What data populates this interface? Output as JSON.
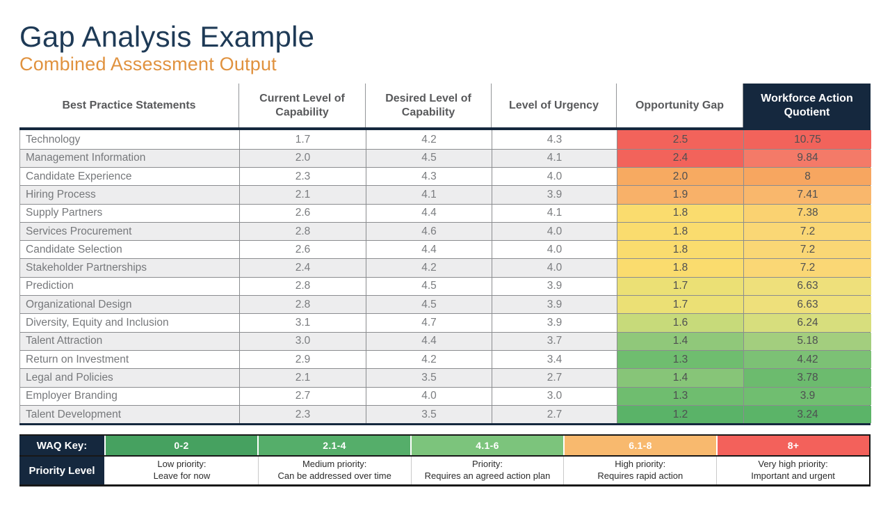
{
  "page": {
    "title": "Gap Analysis Example",
    "subtitle": "Combined Assessment Output"
  },
  "colors": {
    "navy": "#15283E",
    "title_navy": "#1E3A56",
    "subtitle_orange": "#E0923F",
    "row_alt_bg": "#EDEDEE",
    "header_text": "#58595B"
  },
  "table": {
    "columns": [
      "Best Practice Statements",
      "Current Level of Capability",
      "Desired Level of Capability",
      "Level of Urgency",
      "Opportunity Gap",
      "Workforce Action Quotient"
    ],
    "rows": [
      {
        "name": "Technology",
        "current": "1.7",
        "desired": "4.2",
        "urgency": "4.3",
        "gap": "2.5",
        "waq": "10.75",
        "gap_color": "#F2635B",
        "waq_color": "#F2635B"
      },
      {
        "name": "Management Information",
        "current": "2.0",
        "desired": "4.5",
        "urgency": "4.1",
        "gap": "2.4",
        "waq": "9.84",
        "gap_color": "#F2635B",
        "waq_color": "#F47A68"
      },
      {
        "name": "Candidate Experience",
        "current": "2.3",
        "desired": "4.3",
        "urgency": "4.0",
        "gap": "2.0",
        "waq": "8",
        "gap_color": "#F7AA61",
        "waq_color": "#F7A660"
      },
      {
        "name": "Hiring Process",
        "current": "2.1",
        "desired": "4.1",
        "urgency": "3.9",
        "gap": "1.9",
        "waq": "7.41",
        "gap_color": "#F8B169",
        "waq_color": "#F9B76C"
      },
      {
        "name": "Supply Partners",
        "current": "2.6",
        "desired": "4.4",
        "urgency": "4.1",
        "gap": "1.8",
        "waq": "7.38",
        "gap_color": "#FADC6E",
        "waq_color": "#FAD271"
      },
      {
        "name": "Services Procurement",
        "current": "2.8",
        "desired": "4.6",
        "urgency": "4.0",
        "gap": "1.8",
        "waq": "7.2",
        "gap_color": "#FADC6E",
        "waq_color": "#FAD775"
      },
      {
        "name": "Candidate Selection",
        "current": "2.6",
        "desired": "4.4",
        "urgency": "4.0",
        "gap": "1.8",
        "waq": "7.2",
        "gap_color": "#FADC6E",
        "waq_color": "#FAD775"
      },
      {
        "name": "Stakeholder Partnerships",
        "current": "2.4",
        "desired": "4.2",
        "urgency": "4.0",
        "gap": "1.8",
        "waq": "7.2",
        "gap_color": "#FADC6E",
        "waq_color": "#FAD775"
      },
      {
        "name": "Prediction",
        "current": "2.8",
        "desired": "4.5",
        "urgency": "3.9",
        "gap": "1.7",
        "waq": "6.63",
        "gap_color": "#EBE075",
        "waq_color": "#EEE07B"
      },
      {
        "name": "Organizational Design",
        "current": "2.8",
        "desired": "4.5",
        "urgency": "3.9",
        "gap": "1.7",
        "waq": "6.63",
        "gap_color": "#EBE075",
        "waq_color": "#EEE07B"
      },
      {
        "name": "Diversity, Equity and Inclusion",
        "current": "3.1",
        "desired": "4.7",
        "urgency": "3.9",
        "gap": "1.6",
        "waq": "6.24",
        "gap_color": "#C7DA7A",
        "waq_color": "#D7DE7D"
      },
      {
        "name": "Talent Attraction",
        "current": "3.0",
        "desired": "4.4",
        "urgency": "3.7",
        "gap": "1.4",
        "waq": "5.18",
        "gap_color": "#90C87A",
        "waq_color": "#A3CE7E"
      },
      {
        "name": "Return on Investment",
        "current": "2.9",
        "desired": "4.2",
        "urgency": "3.4",
        "gap": "1.3",
        "waq": "4.42",
        "gap_color": "#6FBD6F",
        "waq_color": "#7CC175"
      },
      {
        "name": "Legal and Policies",
        "current": "2.1",
        "desired": "3.5",
        "urgency": "2.7",
        "gap": "1.4",
        "waq": "3.78",
        "gap_color": "#87C578",
        "waq_color": "#6CBB6E"
      },
      {
        "name": "Employer Branding",
        "current": "2.7",
        "desired": "4.0",
        "urgency": "3.0",
        "gap": "1.3",
        "waq": "3.9",
        "gap_color": "#6FBD6F",
        "waq_color": "#70BE70"
      },
      {
        "name": "Talent Development",
        "current": "2.3",
        "desired": "3.5",
        "urgency": "2.7",
        "gap": "1.2",
        "waq": "3.24",
        "gap_color": "#5AB368",
        "waq_color": "#5BB468"
      }
    ]
  },
  "key": {
    "row1_label": "WAQ Key:",
    "row2_label": "Priority Level",
    "segments": [
      {
        "range": "0-2",
        "color": "#46A160",
        "line1": "Low priority:",
        "line2": "Leave for now"
      },
      {
        "range": "2.1-4",
        "color": "#55AE6A",
        "line1": "Medium priority:",
        "line2": "Can be addressed over time"
      },
      {
        "range": "4.1-6",
        "color": "#7CC47C",
        "line1": "Priority:",
        "line2": "Requires an agreed action plan"
      },
      {
        "range": "6.1-8",
        "color": "#F8B96E",
        "line1": "High priority:",
        "line2": "Requires rapid action"
      },
      {
        "range": "8+",
        "color": "#F3615B",
        "line1": "Very high priority:",
        "line2": "Important and urgent"
      }
    ]
  }
}
